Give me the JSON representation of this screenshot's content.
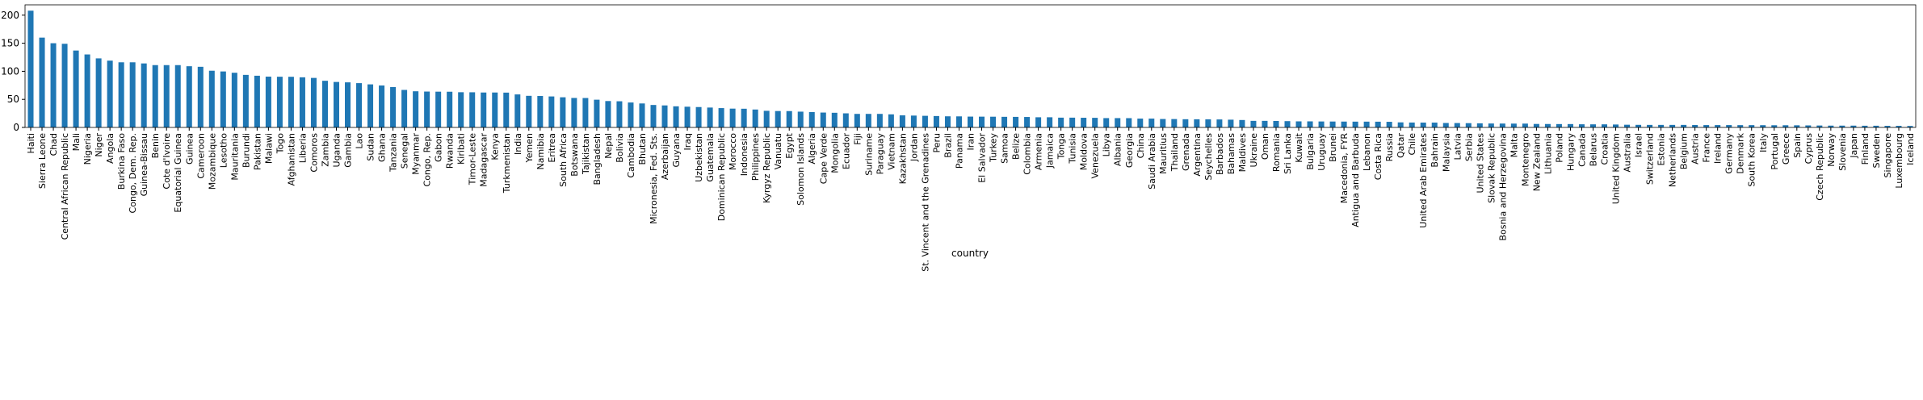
{
  "chart_data": {
    "type": "bar",
    "x_label": "country",
    "color": "#1f77b4",
    "categories": [
      "Haiti",
      "Sierra Leone",
      "Chad",
      "Central African Republic",
      "Mali",
      "Nigeria",
      "Niger",
      "Angola",
      "Burkina Faso",
      "Congo, Dem. Rep.",
      "Guinea-Bissau",
      "Benin",
      "Cote d'Ivoire",
      "Equatorial Guinea",
      "Guinea",
      "Cameroon",
      "Mozambique",
      "Lesotho",
      "Mauritania",
      "Burundi",
      "Pakistan",
      "Malawi",
      "Togo",
      "Afghanistan",
      "Liberia",
      "Comoros",
      "Zambia",
      "Uganda",
      "Gambia",
      "Lao",
      "Sudan",
      "Ghana",
      "Tanzania",
      "Senegal",
      "Myanmar",
      "Congo, Rep.",
      "Gabon",
      "Rwanda",
      "Kiribati",
      "Timor-Leste",
      "Madagascar",
      "Kenya",
      "Turkmenistan",
      "India",
      "Yemen",
      "Namibia",
      "Eritrea",
      "South Africa",
      "Botswana",
      "Tajikistan",
      "Bangladesh",
      "Nepal",
      "Bolivia",
      "Cambodia",
      "Bhutan",
      "Micronesia, Fed. Sts.",
      "Azerbaijan",
      "Guyana",
      "Iraq",
      "Uzbekistan",
      "Guatemala",
      "Dominican Republic",
      "Morocco",
      "Indonesia",
      "Philippines",
      "Kyrgyz Republic",
      "Vanuatu",
      "Egypt",
      "Solomon Islands",
      "Algeria",
      "Cape Verde",
      "Mongolia",
      "Ecuador",
      "Fiji",
      "Suriname",
      "Paraguay",
      "Vietnam",
      "Kazakhstan",
      "Jordan",
      "St. Vincent and the Grenadines",
      "Peru",
      "Brazil",
      "Panama",
      "Iran",
      "El Salvador",
      "Turkey",
      "Samoa",
      "Belize",
      "Colombia",
      "Armenia",
      "Jamaica",
      "Tonga",
      "Tunisia",
      "Moldova",
      "Venezuela",
      "Libya",
      "Albania",
      "Georgia",
      "China",
      "Saudi Arabia",
      "Mauritius",
      "Thailand",
      "Grenada",
      "Argentina",
      "Seychelles",
      "Barbados",
      "Bahamas",
      "Maldives",
      "Ukraine",
      "Oman",
      "Romania",
      "Sri Lanka",
      "Kuwait",
      "Bulgaria",
      "Uruguay",
      "Brunei",
      "Macedonia, FYR",
      "Antigua and Barbuda",
      "Lebanon",
      "Costa Rica",
      "Russia",
      "Qatar",
      "Chile",
      "United Arab Emirates",
      "Bahrain",
      "Malaysia",
      "Latvia",
      "Serbia",
      "United States",
      "Slovak Republic",
      "Bosnia and Herzegovina",
      "Malta",
      "Montenegro",
      "New Zealand",
      "Lithuania",
      "Poland",
      "Hungary",
      "Canada",
      "Belarus",
      "Croatia",
      "United Kingdom",
      "Australia",
      "Israel",
      "Switzerland",
      "Estonia",
      "Netherlands",
      "Belgium",
      "Austria",
      "France",
      "Ireland",
      "Germany",
      "Denmark",
      "South Korea",
      "Italy",
      "Portugal",
      "Greece",
      "Spain",
      "Cyprus",
      "Czech Republic",
      "Norway",
      "Slovenia",
      "Japan",
      "Finland",
      "Sweden",
      "Singapore",
      "Luxembourg",
      "Iceland"
    ],
    "values": [
      208,
      160,
      150,
      149,
      137,
      130,
      123,
      119,
      116,
      116,
      114,
      111,
      111,
      111,
      109,
      108,
      101,
      99.7,
      97.4,
      93.6,
      92.1,
      90.5,
      90.3,
      90.2,
      89.3,
      88.2,
      83.1,
      81,
      80.3,
      78.9,
      76.7,
      74.7,
      71.9,
      66.8,
      64.4,
      63.9,
      63.7,
      63.6,
      62.7,
      62.6,
      62.2,
      62.2,
      62,
      58.8,
      56.3,
      56,
      55.2,
      53.7,
      52.5,
      52.4,
      49.4,
      47,
      46.6,
      44.4,
      42.7,
      40,
      39.2,
      37.6,
      36.9,
      36.3,
      35.4,
      34.4,
      33.5,
      33.3,
      31.9,
      29.6,
      29.2,
      29.1,
      28.1,
      27.3,
      26.5,
      26.1,
      25.1,
      24.1,
      24.1,
      24.1,
      23.3,
      21.5,
      21.1,
      20.7,
      20.3,
      19.8,
      19.7,
      19.3,
      19.2,
      19.1,
      18.9,
      18.8,
      18.6,
      18.1,
      18.1,
      17.4,
      17.4,
      17.2,
      17.1,
      16.6,
      16.6,
      16.5,
      15.7,
      15.7,
      15,
      14.9,
      14.6,
      14.5,
      14.4,
      14.2,
      13.8,
      13.2,
      11.7,
      11.7,
      11.5,
      11.2,
      10.8,
      10.8,
      10.6,
      10.5,
      10.4,
      10.3,
      10.3,
      10.2,
      10,
      9,
      8.7,
      8.6,
      8.6,
      7.9,
      7.8,
      7.6,
      7.3,
      7,
      6.9,
      6.8,
      6.8,
      6.2,
      6.1,
      6,
      6,
      5.6,
      5.5,
      5.5,
      5.2,
      4.8,
      4.6,
      4.5,
      4.5,
      4.5,
      4.5,
      4.3,
      4.2,
      4.2,
      4.2,
      4.1,
      4.1,
      4,
      3.9,
      3.9,
      3.8,
      3.6,
      3.4,
      3.2,
      3.2,
      3.2,
      3,
      3,
      2.8,
      2.8,
      2.6
    ],
    "ylim": [
      0,
      218.4
    ],
    "yticks": [
      0,
      50,
      100,
      150,
      200
    ]
  }
}
